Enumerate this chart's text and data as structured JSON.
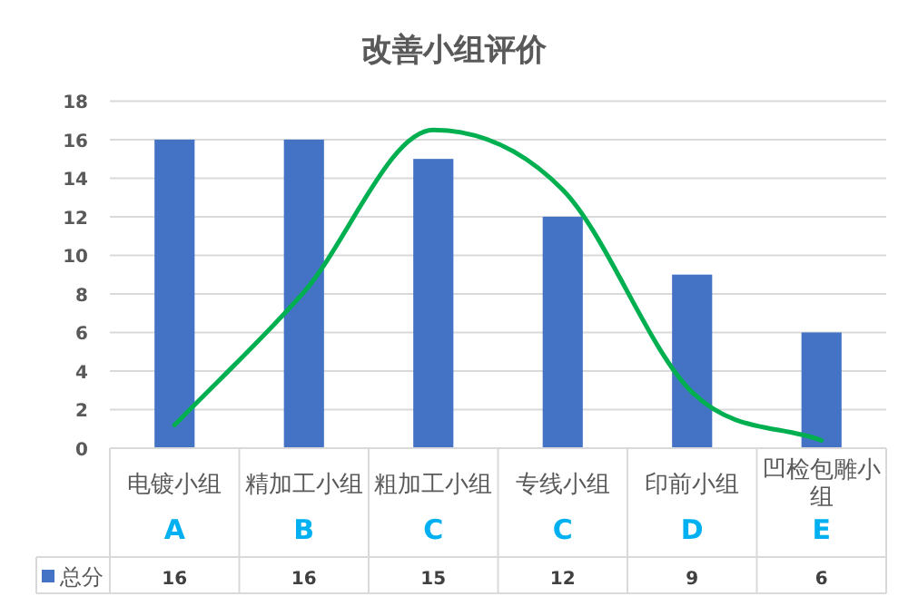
{
  "chart_data": {
    "type": "bar",
    "title": "改善小组评价",
    "categories": [
      "电镀小组",
      "精加工小组",
      "粗加工小组",
      "专线小组",
      "印前小组",
      "凹检包雕小组"
    ],
    "series": [
      {
        "name": "总分",
        "color": "#4472c4",
        "values": [
          16,
          16,
          15,
          12,
          9,
          6
        ],
        "value_labels": [
          "16",
          "16",
          "15",
          "12",
          "9",
          "6"
        ]
      },
      {
        "type": "line",
        "color": "#00b050",
        "values": [
          1.2,
          8.1,
          16.5,
          13.4,
          2.9,
          0.4
        ]
      }
    ],
    "annotations": [
      "A",
      "B",
      "C",
      "C",
      "D",
      "E"
    ],
    "ylim": [
      0,
      18
    ],
    "yticks": [
      0,
      2,
      4,
      6,
      8,
      10,
      12,
      14,
      16,
      18
    ],
    "grid": "y"
  }
}
